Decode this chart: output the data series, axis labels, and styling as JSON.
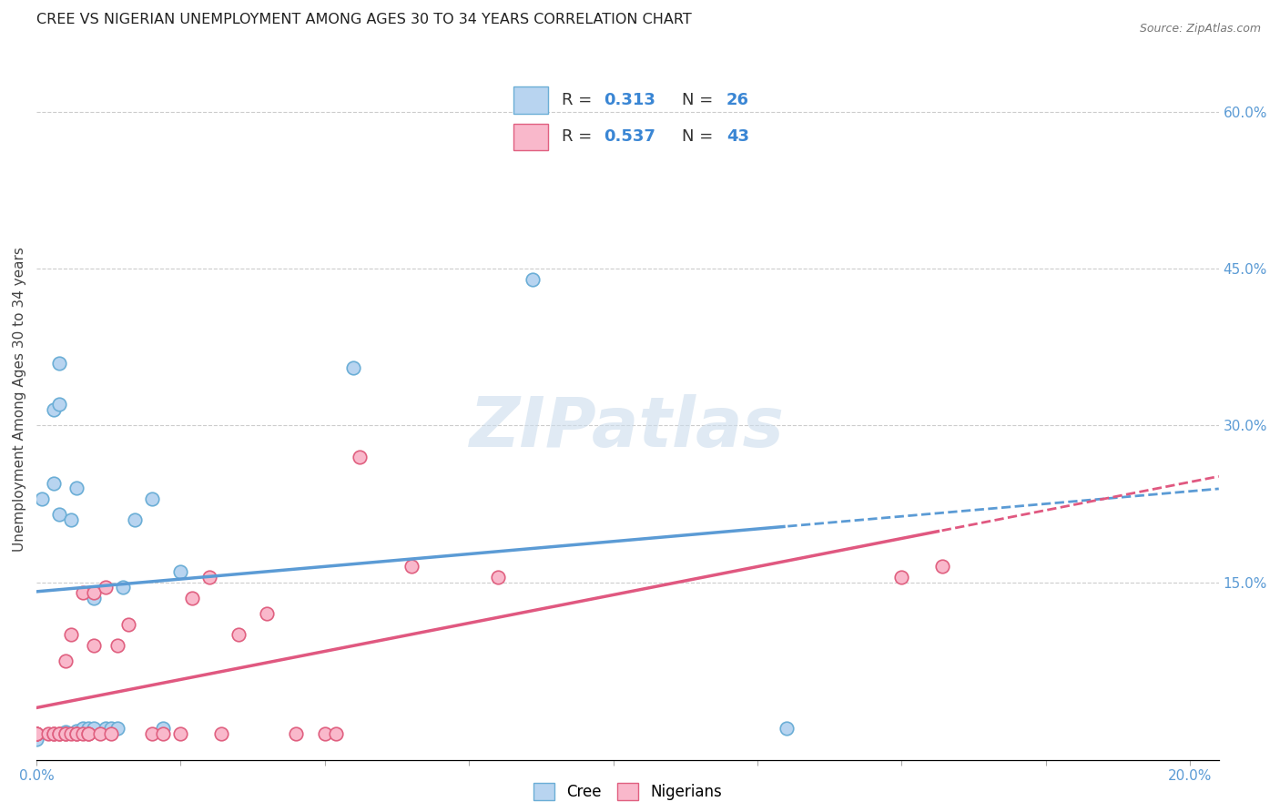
{
  "title": "CREE VS NIGERIAN UNEMPLOYMENT AMONG AGES 30 TO 34 YEARS CORRELATION CHART",
  "source": "Source: ZipAtlas.com",
  "ylabel": "Unemployment Among Ages 30 to 34 years",
  "xlim": [
    0.0,
    0.205
  ],
  "ylim": [
    -0.02,
    0.67
  ],
  "xtick_positions": [
    0.0,
    0.025,
    0.05,
    0.075,
    0.1,
    0.125,
    0.15,
    0.175,
    0.2
  ],
  "xticklabels": [
    "0.0%",
    "",
    "",
    "",
    "",
    "",
    "",
    "",
    "20.0%"
  ],
  "yticks_right": [
    0.15,
    0.3,
    0.45,
    0.6
  ],
  "ytick_labels_right": [
    "15.0%",
    "30.0%",
    "45.0%",
    "60.0%"
  ],
  "cree_face_color": "#b8d4f0",
  "cree_edge_color": "#6baed6",
  "cree_line_color": "#5b9bd5",
  "nigerian_face_color": "#f9b8cb",
  "nigerian_edge_color": "#e06080",
  "nigerian_line_color": "#e05880",
  "cree_R": 0.313,
  "cree_N": 26,
  "nigerian_R": 0.537,
  "nigerian_N": 43,
  "cree_scatter_x": [
    0.0,
    0.001,
    0.003,
    0.003,
    0.004,
    0.004,
    0.004,
    0.005,
    0.006,
    0.007,
    0.007,
    0.008,
    0.009,
    0.01,
    0.01,
    0.012,
    0.013,
    0.014,
    0.015,
    0.017,
    0.02,
    0.022,
    0.025,
    0.055,
    0.086,
    0.13
  ],
  "cree_scatter_y": [
    0.0,
    0.23,
    0.245,
    0.315,
    0.36,
    0.215,
    0.32,
    0.007,
    0.21,
    0.008,
    0.24,
    0.01,
    0.01,
    0.01,
    0.135,
    0.01,
    0.01,
    0.01,
    0.145,
    0.21,
    0.23,
    0.01,
    0.16,
    0.355,
    0.44,
    0.01
  ],
  "nigerian_scatter_x": [
    0.0,
    0.0,
    0.0,
    0.0,
    0.002,
    0.003,
    0.003,
    0.004,
    0.004,
    0.005,
    0.005,
    0.005,
    0.006,
    0.006,
    0.007,
    0.007,
    0.008,
    0.008,
    0.009,
    0.009,
    0.01,
    0.01,
    0.011,
    0.012,
    0.013,
    0.014,
    0.016,
    0.02,
    0.022,
    0.025,
    0.027,
    0.03,
    0.032,
    0.035,
    0.04,
    0.045,
    0.05,
    0.052,
    0.056,
    0.065,
    0.08,
    0.15,
    0.157
  ],
  "nigerian_scatter_y": [
    0.005,
    0.005,
    0.005,
    0.005,
    0.005,
    0.005,
    0.005,
    0.005,
    0.005,
    0.005,
    0.005,
    0.075,
    0.005,
    0.1,
    0.005,
    0.005,
    0.005,
    0.14,
    0.005,
    0.005,
    0.09,
    0.14,
    0.005,
    0.145,
    0.005,
    0.09,
    0.11,
    0.005,
    0.005,
    0.005,
    0.135,
    0.155,
    0.005,
    0.1,
    0.12,
    0.005,
    0.005,
    0.005,
    0.27,
    0.165,
    0.155,
    0.155,
    0.165
  ],
  "watermark": "ZIPatlas",
  "background_color": "#ffffff",
  "grid_color": "#cccccc",
  "title_fontsize": 11.5,
  "tick_fontsize": 11,
  "ylabel_fontsize": 11
}
